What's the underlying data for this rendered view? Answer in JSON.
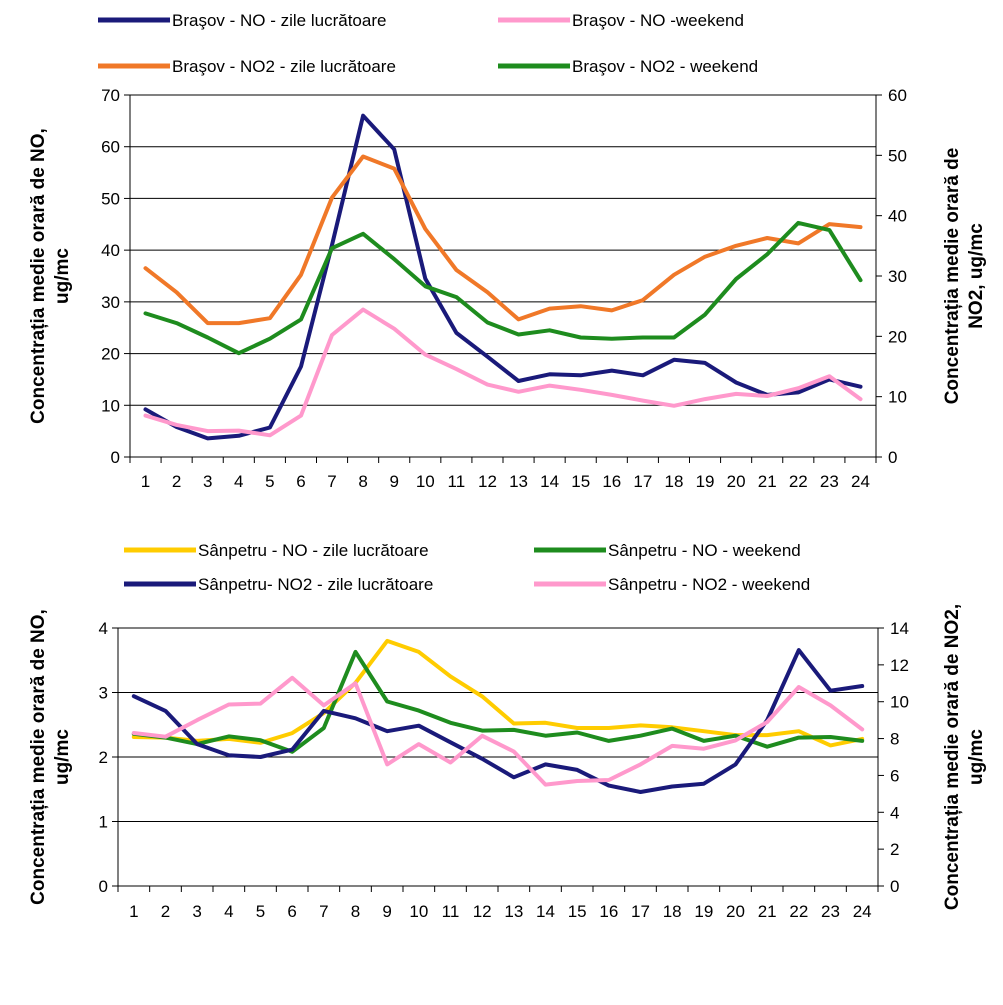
{
  "chart_data": [
    {
      "type": "line",
      "title": "",
      "x": [
        1,
        2,
        3,
        4,
        5,
        6,
        7,
        8,
        9,
        10,
        11,
        12,
        13,
        14,
        15,
        16,
        17,
        18,
        19,
        20,
        21,
        22,
        23,
        24
      ],
      "ylabel_left": [
        "Concentrația medie orară de NO,",
        "ug/mc"
      ],
      "ylabel_right": [
        "Concentrația medie orară de",
        "NO2, ug/mc"
      ],
      "ylim_left": [
        0,
        70
      ],
      "yticks_left": [
        "0",
        "10",
        "20",
        "30",
        "40",
        "50",
        "60",
        "70"
      ],
      "ylim_right": [
        0,
        60
      ],
      "yticks_right": [
        "0",
        "10",
        "20",
        "30",
        "40",
        "50",
        "60"
      ],
      "grid": true,
      "legend_position": "top",
      "series": [
        {
          "name": "Braşov -  NO  - zile lucrătoare",
          "axis": "left",
          "color": "#1a1a7a",
          "values": [
            9.2,
            5.8,
            3.6,
            4.1,
            5.7,
            17.5,
            41,
            66,
            59.5,
            34.5,
            24,
            19.4,
            14.7,
            16,
            15.8,
            16.7,
            15.8,
            18.8,
            18.2,
            14.4,
            12,
            12.5,
            15,
            13.6
          ]
        },
        {
          "name": "Braşov - NO -weekend",
          "axis": "left",
          "color": "#ff99cc",
          "values": [
            8,
            6.2,
            5,
            5.1,
            4.2,
            8,
            23.6,
            28.5,
            24.8,
            19.8,
            17,
            14,
            12.6,
            13.8,
            13,
            12,
            10.9,
            9.9,
            11.2,
            12.2,
            11.8,
            13.3,
            15.6,
            11.2
          ]
        },
        {
          "name": "Braşov - NO2 - zile lucrătoare",
          "axis": "right",
          "color": "#f07828",
          "values": [
            31.3,
            27.3,
            22.2,
            22.2,
            23,
            30.2,
            43,
            49.8,
            47.8,
            37.8,
            31,
            27.3,
            22.8,
            24.6,
            25,
            24.3,
            26,
            30.2,
            33.2,
            35,
            36.3,
            35.4,
            38.6,
            38.1
          ]
        },
        {
          "name": "Braşov - NO2 - weekend",
          "axis": "right",
          "color": "#1e8c1e",
          "values": [
            23.8,
            22.2,
            19.8,
            17.2,
            19.6,
            22.8,
            34.6,
            37,
            32.8,
            28.3,
            26.5,
            22.3,
            20.3,
            21,
            19.8,
            19.6,
            19.8,
            19.8,
            23.6,
            29.5,
            33.6,
            38.8,
            37.6,
            29.3
          ]
        }
      ]
    },
    {
      "type": "line",
      "title": "",
      "x": [
        1,
        2,
        3,
        4,
        5,
        6,
        7,
        8,
        9,
        10,
        11,
        12,
        13,
        14,
        15,
        16,
        17,
        18,
        19,
        20,
        21,
        22,
        23,
        24
      ],
      "ylabel_left": [
        "Concentrația medie orară de NO,",
        "ug/mc"
      ],
      "ylabel_right": [
        "Concentrația medie orară de NO2,",
        "ug/mc"
      ],
      "ylim_left": [
        0,
        4
      ],
      "yticks_left": [
        "0",
        "1",
        "2",
        "3",
        "4"
      ],
      "ylim_right": [
        0,
        14
      ],
      "yticks_right": [
        "0",
        "2",
        "4",
        "6",
        "8",
        "10",
        "12",
        "14"
      ],
      "grid": true,
      "legend_position": "top",
      "series": [
        {
          "name": "Sânpetru - NO - zile lucrătoare",
          "axis": "left",
          "color": "#ffcc00",
          "values": [
            2.31,
            2.3,
            2.25,
            2.28,
            2.22,
            2.37,
            2.68,
            3.15,
            3.8,
            3.63,
            3.25,
            2.94,
            2.52,
            2.53,
            2.45,
            2.45,
            2.49,
            2.46,
            2.4,
            2.34,
            2.34,
            2.4,
            2.18,
            2.28
          ]
        },
        {
          "name": "Sânpetru - NO - weekend",
          "axis": "left",
          "color": "#1e8c1e",
          "values": [
            2.36,
            2.3,
            2.2,
            2.32,
            2.26,
            2.08,
            2.45,
            3.63,
            2.86,
            2.72,
            2.53,
            2.41,
            2.42,
            2.33,
            2.38,
            2.25,
            2.33,
            2.44,
            2.25,
            2.33,
            2.16,
            2.3,
            2.31,
            2.25
          ]
        },
        {
          "name": "Sânpetru- NO2 - zile lucrătoare",
          "axis": "right",
          "color": "#1a1a7a",
          "values": [
            10.3,
            9.5,
            7.7,
            7.1,
            7.0,
            7.4,
            9.5,
            9.1,
            8.4,
            8.7,
            7.8,
            6.9,
            5.9,
            6.6,
            6.3,
            5.45,
            5.1,
            5.4,
            5.55,
            6.6,
            9.0,
            12.8,
            10.6,
            10.85
          ]
        },
        {
          "name": "Sânpetru - NO2 - weekend",
          "axis": "right",
          "color": "#ff99cc",
          "values": [
            8.3,
            8.1,
            9.0,
            9.85,
            9.9,
            11.3,
            9.8,
            11.0,
            6.6,
            7.7,
            6.7,
            8.15,
            7.3,
            5.5,
            5.7,
            5.75,
            6.6,
            7.6,
            7.45,
            7.9,
            8.9,
            10.8,
            9.8,
            8.5
          ]
        }
      ]
    }
  ]
}
